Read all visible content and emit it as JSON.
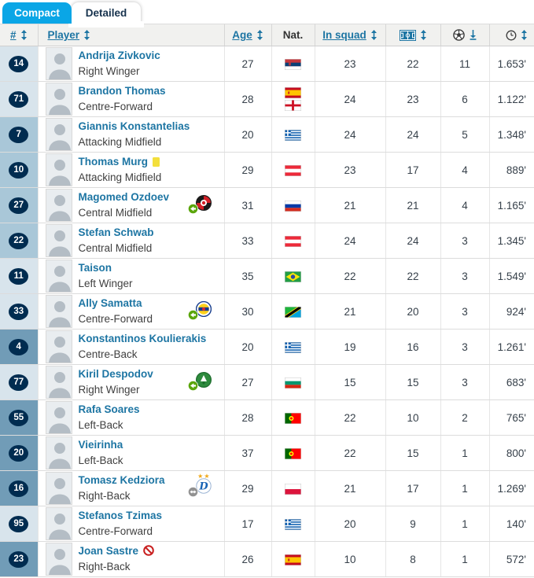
{
  "tabs": [
    {
      "label": "Compact",
      "active": true
    },
    {
      "label": "Detailed",
      "active": false
    }
  ],
  "header": {
    "columns": [
      {
        "key": "number",
        "label": "#",
        "sortable": true
      },
      {
        "key": "player",
        "label": "Player",
        "sortable": true
      },
      {
        "key": "age",
        "label": "Age",
        "sortable": true
      },
      {
        "key": "nat",
        "label": "Nat.",
        "sortable": false
      },
      {
        "key": "in_squad",
        "label": "In squad",
        "sortable": true
      },
      {
        "key": "starting_eleven",
        "icon": "pitch-icon",
        "sortable": true
      },
      {
        "key": "goals",
        "icon": "ball-icon",
        "sortable": true,
        "sorted": "desc"
      },
      {
        "key": "minutes",
        "icon": "clock-icon",
        "sortable": true
      }
    ]
  },
  "colors": {
    "active_tab_blue": "#0aa6e6",
    "link_blue": "#1d75a3",
    "number_badge_navy": "#002c50",
    "position_attack_bg": "#d8e4ec",
    "position_midfield_bg": "#a9c7d8",
    "position_defence_bg": "#719cb7",
    "yellow_card": "#f3df3c",
    "ban_red": "#c81e1e",
    "transfer_in_green": "#5aa50a",
    "loan_gray": "#919191"
  },
  "rows": [
    {
      "number": "14",
      "pos_group": "attack",
      "name": "Andrija Zivkovic",
      "position": "Right Winger",
      "age": "27",
      "flags": [
        "serbia"
      ],
      "status_icon": null,
      "transfer": null,
      "in_squad": "23",
      "starting": "22",
      "goals": "11",
      "minutes": "1.653'"
    },
    {
      "number": "71",
      "pos_group": "attack",
      "name": "Brandon Thomas",
      "position": "Centre-Forward",
      "age": "28",
      "flags": [
        "spain",
        "england"
      ],
      "status_icon": null,
      "transfer": null,
      "in_squad": "24",
      "starting": "23",
      "goals": "6",
      "minutes": "1.122'"
    },
    {
      "number": "7",
      "pos_group": "midfield",
      "name": "Giannis Konstantelias",
      "position": "Attacking Midfield",
      "age": "20",
      "flags": [
        "greece"
      ],
      "status_icon": null,
      "transfer": null,
      "in_squad": "24",
      "starting": "24",
      "goals": "5",
      "minutes": "1.348'"
    },
    {
      "number": "10",
      "pos_group": "midfield",
      "name": "Thomas Murg",
      "position": "Attacking Midfield",
      "age": "29",
      "flags": [
        "austria"
      ],
      "status_icon": "yellow-card",
      "transfer": null,
      "in_squad": "23",
      "starting": "17",
      "goals": "4",
      "minutes": "889'"
    },
    {
      "number": "27",
      "pos_group": "midfield",
      "name": "Magomed Ozdoev",
      "position": "Central Midfield",
      "age": "31",
      "flags": [
        "russia"
      ],
      "status_icon": null,
      "transfer": {
        "arrow": "in",
        "badge": "red-black-club"
      },
      "in_squad": "21",
      "starting": "21",
      "goals": "4",
      "minutes": "1.165'"
    },
    {
      "number": "22",
      "pos_group": "midfield",
      "name": "Stefan Schwab",
      "position": "Central Midfield",
      "age": "33",
      "flags": [
        "austria"
      ],
      "status_icon": null,
      "transfer": null,
      "in_squad": "24",
      "starting": "24",
      "goals": "3",
      "minutes": "1.345'"
    },
    {
      "number": "11",
      "pos_group": "attack",
      "name": "Taison",
      "position": "Left Winger",
      "age": "35",
      "flags": [
        "brazil"
      ],
      "status_icon": null,
      "transfer": null,
      "in_squad": "22",
      "starting": "22",
      "goals": "3",
      "minutes": "1.549'"
    },
    {
      "number": "33",
      "pos_group": "attack",
      "name": "Ally Samatta",
      "position": "Centre-Forward",
      "age": "30",
      "flags": [
        "tanzania"
      ],
      "status_icon": null,
      "transfer": {
        "arrow": "in",
        "badge": "navy-yellow-club"
      },
      "in_squad": "21",
      "starting": "20",
      "goals": "3",
      "minutes": "924'"
    },
    {
      "number": "4",
      "pos_group": "defence",
      "name": "Konstantinos Koulierakis",
      "position": "Centre-Back",
      "age": "20",
      "flags": [
        "greece"
      ],
      "status_icon": null,
      "transfer": null,
      "in_squad": "19",
      "starting": "16",
      "goals": "3",
      "minutes": "1.261'"
    },
    {
      "number": "77",
      "pos_group": "attack",
      "name": "Kiril Despodov",
      "position": "Right Winger",
      "age": "27",
      "flags": [
        "bulgaria"
      ],
      "status_icon": null,
      "transfer": {
        "arrow": "in",
        "badge": "green-club"
      },
      "in_squad": "15",
      "starting": "15",
      "goals": "3",
      "minutes": "683'"
    },
    {
      "number": "55",
      "pos_group": "defence",
      "name": "Rafa Soares",
      "position": "Left-Back",
      "age": "28",
      "flags": [
        "portugal"
      ],
      "status_icon": null,
      "transfer": null,
      "in_squad": "22",
      "starting": "10",
      "goals": "2",
      "minutes": "765'"
    },
    {
      "number": "20",
      "pos_group": "defence",
      "name": "Vieirinha",
      "position": "Left-Back",
      "age": "37",
      "flags": [
        "portugal"
      ],
      "status_icon": null,
      "transfer": null,
      "in_squad": "22",
      "starting": "15",
      "goals": "1",
      "minutes": "800'"
    },
    {
      "number": "16",
      "pos_group": "defence",
      "name": "Tomasz Kedziora",
      "position": "Right-Back",
      "age": "29",
      "flags": [
        "poland"
      ],
      "status_icon": null,
      "transfer": {
        "arrow": "loan",
        "badge": "white-blue-d-club",
        "stars": true
      },
      "in_squad": "21",
      "starting": "17",
      "goals": "1",
      "minutes": "1.269'"
    },
    {
      "number": "95",
      "pos_group": "attack",
      "name": "Stefanos Tzimas",
      "position": "Centre-Forward",
      "age": "17",
      "flags": [
        "greece"
      ],
      "status_icon": null,
      "transfer": null,
      "in_squad": "20",
      "starting": "9",
      "goals": "1",
      "minutes": "140'"
    },
    {
      "number": "23",
      "pos_group": "defence",
      "name": "Joan Sastre",
      "position": "Right-Back",
      "age": "26",
      "flags": [
        "spain"
      ],
      "status_icon": "banned",
      "transfer": null,
      "in_squad": "10",
      "starting": "8",
      "goals": "1",
      "minutes": "572'"
    }
  ]
}
